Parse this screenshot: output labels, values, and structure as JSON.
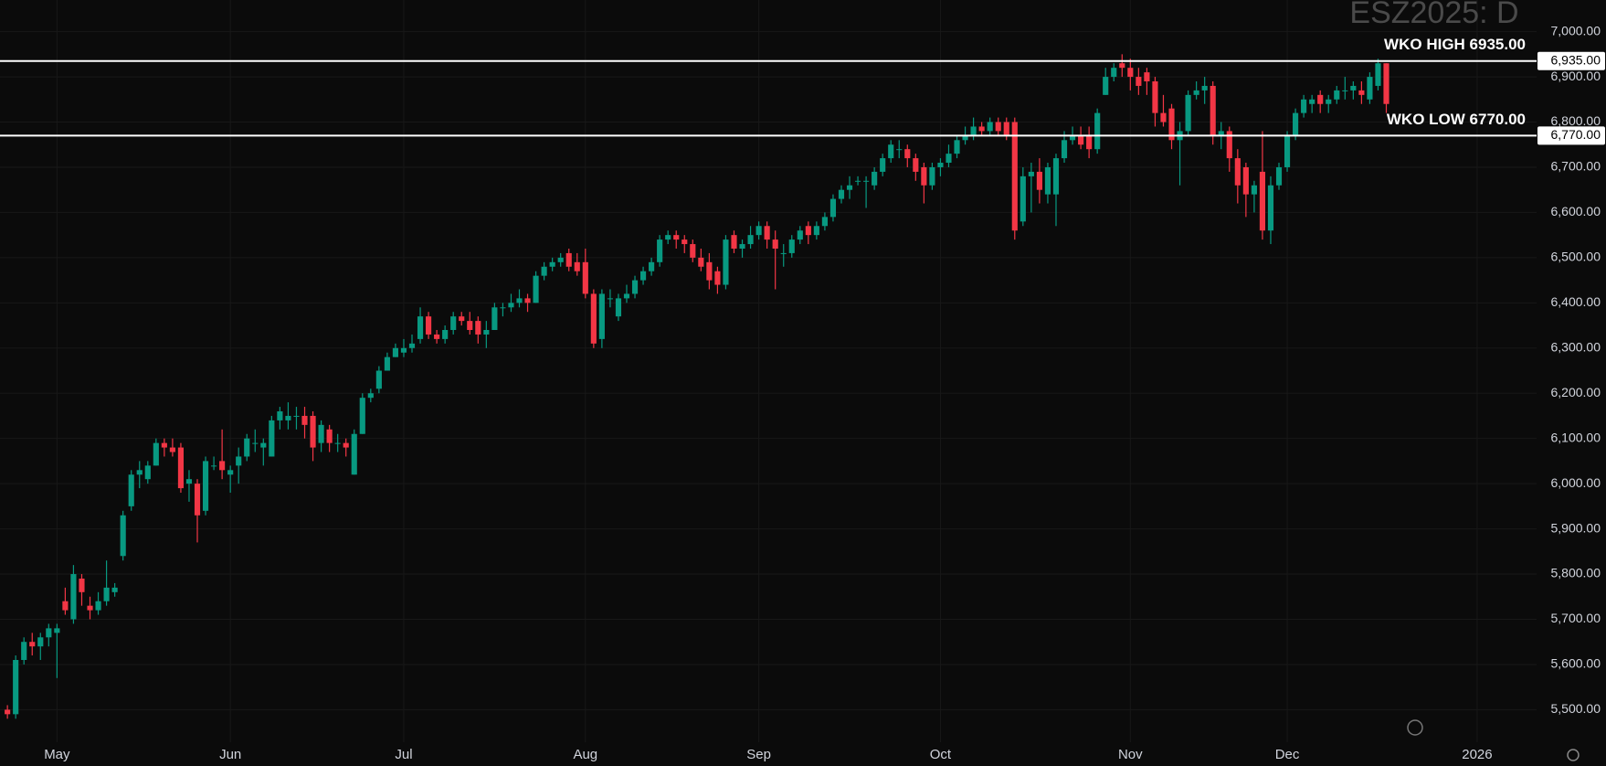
{
  "chart_data": {
    "type": "candlestick",
    "title": "ESZ2025: D",
    "up_color": "#089981",
    "down_color": "#f23645",
    "grid": true,
    "xlim": [
      -0.9,
      185.2
    ],
    "ylim": [
      5428,
      7070
    ],
    "xticks": [
      {
        "value": 6,
        "label": "May"
      },
      {
        "value": 27,
        "label": "Jun"
      },
      {
        "value": 48,
        "label": "Jul"
      },
      {
        "value": 70,
        "label": "Aug"
      },
      {
        "value": 91,
        "label": "Sep"
      },
      {
        "value": 113,
        "label": "Oct"
      },
      {
        "value": 136,
        "label": "Nov"
      },
      {
        "value": 155,
        "label": "Dec"
      },
      {
        "value": 178,
        "label": "2026"
      }
    ],
    "yticks": [
      {
        "value": 5500,
        "label": "5,500.00"
      },
      {
        "value": 5600,
        "label": "5,600.00"
      },
      {
        "value": 5700,
        "label": "5,700.00"
      },
      {
        "value": 5800,
        "label": "5,800.00"
      },
      {
        "value": 5900,
        "label": "5,900.00"
      },
      {
        "value": 6000,
        "label": "6,000.00"
      },
      {
        "value": 6100,
        "label": "6,100.00"
      },
      {
        "value": 6200,
        "label": "6,200.00"
      },
      {
        "value": 6300,
        "label": "6,300.00"
      },
      {
        "value": 6400,
        "label": "6,400.00"
      },
      {
        "value": 6500,
        "label": "6,500.00"
      },
      {
        "value": 6600,
        "label": "6,600.00"
      },
      {
        "value": 6700,
        "label": "6,700.00"
      },
      {
        "value": 6800,
        "label": "6,800.00"
      },
      {
        "value": 6900,
        "label": "6,900.00"
      },
      {
        "value": 7000,
        "label": "7,000.00"
      }
    ],
    "hlines": [
      {
        "value": 6935,
        "label": "WKO HIGH 6935.00",
        "tag": "6,935.00"
      },
      {
        "value": 6770,
        "label": "WKO LOW 6770.00",
        "tag": "6,770.00"
      }
    ],
    "ohlc": [
      [
        5500,
        5510,
        5480,
        5490
      ],
      [
        5490,
        5620,
        5480,
        5610
      ],
      [
        5610,
        5660,
        5600,
        5650
      ],
      [
        5650,
        5670,
        5620,
        5640
      ],
      [
        5640,
        5670,
        5610,
        5660
      ],
      [
        5660,
        5690,
        5640,
        5680
      ],
      [
        5670,
        5690,
        5570,
        5680
      ],
      [
        5740,
        5770,
        5710,
        5720
      ],
      [
        5700,
        5820,
        5690,
        5800
      ],
      [
        5790,
        5800,
        5730,
        5760
      ],
      [
        5730,
        5750,
        5700,
        5720
      ],
      [
        5720,
        5760,
        5710,
        5740
      ],
      [
        5740,
        5830,
        5730,
        5770
      ],
      [
        5760,
        5780,
        5750,
        5770
      ],
      [
        5840,
        5940,
        5830,
        5930
      ],
      [
        5950,
        6030,
        5940,
        6020
      ],
      [
        6020,
        6050,
        5990,
        6030
      ],
      [
        6010,
        6050,
        6000,
        6040
      ],
      [
        6040,
        6100,
        6040,
        6090
      ],
      [
        6090,
        6100,
        6060,
        6080
      ],
      [
        6080,
        6100,
        6060,
        6070
      ],
      [
        6080,
        6090,
        5980,
        5990
      ],
      [
        6000,
        6030,
        5960,
        6010
      ],
      [
        6000,
        6010,
        5870,
        5930
      ],
      [
        5940,
        6060,
        5930,
        6050
      ],
      [
        6040,
        6060,
        6030,
        6040
      ],
      [
        6050,
        6120,
        6010,
        6030
      ],
      [
        6020,
        6040,
        5980,
        6030
      ],
      [
        6040,
        6080,
        6000,
        6060
      ],
      [
        6060,
        6110,
        6050,
        6100
      ],
      [
        6090,
        6120,
        6070,
        6090
      ],
      [
        6080,
        6100,
        6040,
        6090
      ],
      [
        6060,
        6150,
        6060,
        6140
      ],
      [
        6140,
        6170,
        6120,
        6160
      ],
      [
        6140,
        6180,
        6120,
        6150
      ],
      [
        6150,
        6170,
        6120,
        6150
      ],
      [
        6150,
        6170,
        6100,
        6130
      ],
      [
        6150,
        6160,
        6050,
        6080
      ],
      [
        6090,
        6140,
        6070,
        6130
      ],
      [
        6120,
        6130,
        6070,
        6090
      ],
      [
        6090,
        6110,
        6070,
        6090
      ],
      [
        6090,
        6100,
        6060,
        6080
      ],
      [
        6020,
        6120,
        6020,
        6110
      ],
      [
        6110,
        6200,
        6110,
        6190
      ],
      [
        6190,
        6210,
        6180,
        6200
      ],
      [
        6210,
        6260,
        6200,
        6250
      ],
      [
        6250,
        6290,
        6250,
        6280
      ],
      [
        6280,
        6310,
        6280,
        6300
      ],
      [
        6290,
        6320,
        6280,
        6300
      ],
      [
        6300,
        6330,
        6290,
        6310
      ],
      [
        6320,
        6390,
        6310,
        6370
      ],
      [
        6370,
        6380,
        6320,
        6330
      ],
      [
        6330,
        6340,
        6310,
        6320
      ],
      [
        6320,
        6350,
        6310,
        6340
      ],
      [
        6340,
        6380,
        6330,
        6370
      ],
      [
        6370,
        6380,
        6350,
        6360
      ],
      [
        6360,
        6380,
        6330,
        6340
      ],
      [
        6360,
        6370,
        6310,
        6330
      ],
      [
        6330,
        6360,
        6300,
        6340
      ],
      [
        6340,
        6400,
        6340,
        6390
      ],
      [
        6390,
        6400,
        6370,
        6390
      ],
      [
        6390,
        6420,
        6380,
        6400
      ],
      [
        6400,
        6430,
        6390,
        6410
      ],
      [
        6410,
        6420,
        6380,
        6400
      ],
      [
        6400,
        6470,
        6400,
        6460
      ],
      [
        6460,
        6490,
        6450,
        6480
      ],
      [
        6480,
        6500,
        6470,
        6490
      ],
      [
        6490,
        6510,
        6480,
        6500
      ],
      [
        6510,
        6520,
        6470,
        6480
      ],
      [
        6490,
        6510,
        6460,
        6470
      ],
      [
        6490,
        6520,
        6410,
        6420
      ],
      [
        6420,
        6430,
        6300,
        6310
      ],
      [
        6320,
        6430,
        6300,
        6420
      ],
      [
        6410,
        6430,
        6390,
        6410
      ],
      [
        6370,
        6420,
        6360,
        6410
      ],
      [
        6410,
        6440,
        6400,
        6420
      ],
      [
        6420,
        6460,
        6410,
        6450
      ],
      [
        6450,
        6480,
        6440,
        6470
      ],
      [
        6470,
        6500,
        6460,
        6490
      ],
      [
        6490,
        6550,
        6480,
        6540
      ],
      [
        6540,
        6560,
        6530,
        6550
      ],
      [
        6550,
        6560,
        6520,
        6540
      ],
      [
        6540,
        6550,
        6510,
        6530
      ],
      [
        6530,
        6540,
        6490,
        6500
      ],
      [
        6500,
        6520,
        6470,
        6480
      ],
      [
        6490,
        6510,
        6430,
        6450
      ],
      [
        6470,
        6480,
        6420,
        6440
      ],
      [
        6440,
        6550,
        6430,
        6540
      ],
      [
        6550,
        6560,
        6510,
        6520
      ],
      [
        6520,
        6540,
        6500,
        6530
      ],
      [
        6530,
        6570,
        6520,
        6550
      ],
      [
        6550,
        6580,
        6540,
        6570
      ],
      [
        6570,
        6580,
        6520,
        6540
      ],
      [
        6540,
        6560,
        6430,
        6520
      ],
      [
        6510,
        6530,
        6480,
        6510
      ],
      [
        6510,
        6550,
        6500,
        6540
      ],
      [
        6540,
        6570,
        6530,
        6560
      ],
      [
        6570,
        6580,
        6530,
        6550
      ],
      [
        6550,
        6580,
        6540,
        6570
      ],
      [
        6570,
        6600,
        6560,
        6590
      ],
      [
        6590,
        6640,
        6580,
        6630
      ],
      [
        6630,
        6660,
        6620,
        6650
      ],
      [
        6650,
        6680,
        6630,
        6660
      ],
      [
        6670,
        6680,
        6660,
        6670
      ],
      [
        6670,
        6680,
        6610,
        6670
      ],
      [
        6660,
        6700,
        6650,
        6690
      ],
      [
        6690,
        6730,
        6680,
        6720
      ],
      [
        6720,
        6760,
        6710,
        6750
      ],
      [
        6740,
        6760,
        6720,
        6740
      ],
      [
        6740,
        6750,
        6700,
        6720
      ],
      [
        6720,
        6730,
        6670,
        6690
      ],
      [
        6700,
        6710,
        6620,
        6660
      ],
      [
        6660,
        6710,
        6650,
        6700
      ],
      [
        6700,
        6720,
        6680,
        6710
      ],
      [
        6710,
        6750,
        6700,
        6730
      ],
      [
        6730,
        6770,
        6720,
        6760
      ],
      [
        6760,
        6790,
        6750,
        6770
      ],
      [
        6770,
        6810,
        6760,
        6790
      ],
      [
        6790,
        6800,
        6770,
        6780
      ],
      [
        6780,
        6810,
        6770,
        6800
      ],
      [
        6800,
        6810,
        6770,
        6780
      ],
      [
        6800,
        6810,
        6760,
        6770
      ],
      [
        6800,
        6810,
        6540,
        6560
      ],
      [
        6580,
        6700,
        6570,
        6680
      ],
      [
        6680,
        6710,
        6600,
        6690
      ],
      [
        6690,
        6720,
        6620,
        6650
      ],
      [
        6640,
        6710,
        6620,
        6700
      ],
      [
        6640,
        6730,
        6570,
        6720
      ],
      [
        6720,
        6780,
        6710,
        6760
      ],
      [
        6760,
        6790,
        6750,
        6770
      ],
      [
        6770,
        6790,
        6740,
        6750
      ],
      [
        6770,
        6790,
        6720,
        6740
      ],
      [
        6740,
        6830,
        6730,
        6820
      ],
      [
        6860,
        6920,
        6860,
        6900
      ],
      [
        6900,
        6930,
        6890,
        6920
      ],
      [
        6930,
        6950,
        6900,
        6920
      ],
      [
        6920,
        6940,
        6870,
        6900
      ],
      [
        6900,
        6920,
        6860,
        6880
      ],
      [
        6910,
        6920,
        6860,
        6890
      ],
      [
        6890,
        6900,
        6790,
        6820
      ],
      [
        6820,
        6860,
        6790,
        6800
      ],
      [
        6830,
        6840,
        6740,
        6760
      ],
      [
        6760,
        6800,
        6660,
        6780
      ],
      [
        6780,
        6870,
        6770,
        6860
      ],
      [
        6860,
        6890,
        6850,
        6870
      ],
      [
        6870,
        6900,
        6840,
        6880
      ],
      [
        6880,
        6890,
        6750,
        6770
      ],
      [
        6770,
        6800,
        6740,
        6780
      ],
      [
        6780,
        6790,
        6690,
        6720
      ],
      [
        6720,
        6740,
        6620,
        6660
      ],
      [
        6700,
        6710,
        6590,
        6640
      ],
      [
        6640,
        6670,
        6600,
        6660
      ],
      [
        6690,
        6780,
        6540,
        6560
      ],
      [
        6560,
        6680,
        6530,
        6660
      ],
      [
        6660,
        6710,
        6650,
        6700
      ],
      [
        6700,
        6780,
        6690,
        6770
      ],
      [
        6770,
        6830,
        6760,
        6820
      ],
      [
        6820,
        6860,
        6810,
        6850
      ],
      [
        6840,
        6860,
        6820,
        6850
      ],
      [
        6860,
        6870,
        6820,
        6840
      ],
      [
        6840,
        6860,
        6820,
        6850
      ],
      [
        6850,
        6880,
        6840,
        6870
      ],
      [
        6870,
        6900,
        6850,
        6870
      ],
      [
        6870,
        6890,
        6850,
        6880
      ],
      [
        6870,
        6890,
        6840,
        6860
      ],
      [
        6850,
        6910,
        6840,
        6900
      ],
      [
        6880,
        6940,
        6870,
        6930
      ],
      [
        6930,
        6930,
        6820,
        6840
      ]
    ]
  }
}
